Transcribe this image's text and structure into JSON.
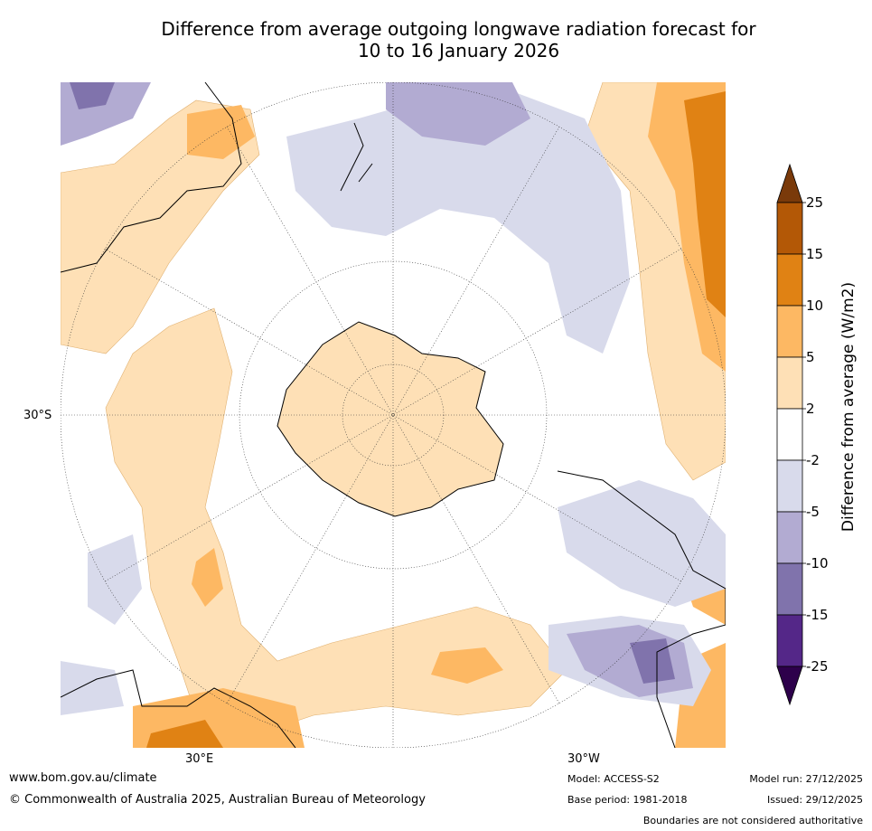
{
  "title": {
    "line1": "Difference from average outgoing longwave radiation forecast for",
    "line2": "10 to 16 January 2026"
  },
  "map": {
    "lat_label": "30°S",
    "lon_labels": [
      "30°E",
      "30°W"
    ]
  },
  "colorbar": {
    "label": "Difference from average (W/m2)",
    "ticks": [
      "25",
      "15",
      "10",
      "5",
      "2",
      "-2",
      "-5",
      "-10",
      "-15",
      "-25"
    ],
    "colors": [
      "#7a3a0a",
      "#b35806",
      "#e08214",
      "#fdb863",
      "#fee0b6",
      "#ffffff",
      "#d8daeb",
      "#b2abd2",
      "#8073ac",
      "#542788",
      "#2d004b"
    ]
  },
  "footer": {
    "website": "www.bom.gov.au/climate",
    "copyright": "© Commonwealth of Australia 2025, Australian Bureau of Meteorology",
    "model": "Model: ACCESS-S2",
    "base_period": "Base period: 1981-2018",
    "model_run": "Model run: 27/12/2025",
    "issued": "Issued: 29/12/2025",
    "disclaimer": "Boundaries are not considered authoritative"
  }
}
